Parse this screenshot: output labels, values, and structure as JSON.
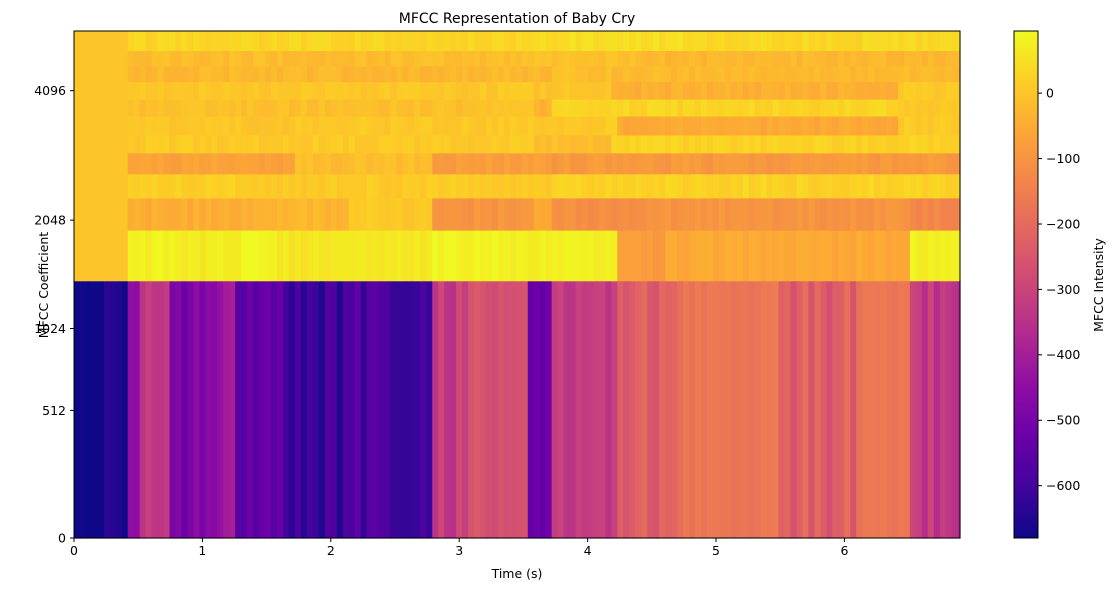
{
  "chart_data": {
    "type": "heatmap",
    "title": "MFCC Representation of Baby Cry",
    "xlabel": "Time (s)",
    "ylabel": "MFCC Coefficient",
    "xlim": [
      0,
      6.9
    ],
    "x_ticks": [
      0,
      1,
      2,
      3,
      4,
      5,
      6
    ],
    "y_axis_scale": "mel",
    "y_ticks": [
      0,
      512,
      1024,
      2048,
      4096
    ],
    "colormap": "plasma",
    "colorbar": {
      "label": "MFCC Intensity",
      "range": [
        -680,
        95
      ],
      "ticks": [
        0,
        -100,
        -200,
        -300,
        -400,
        -500,
        -600
      ]
    },
    "grid": false,
    "row_order": "bottom_to_top",
    "row_bounds": [
      0,
      5.03,
      6.02,
      6.65,
      7.12,
      7.53,
      7.88,
      8.25,
      8.58,
      8.92,
      9.23,
      9.53,
      9.91
    ],
    "frame_time_step": 0.0465,
    "rows": [
      {
        "breakpoints": [
          0,
          0.42,
          0.5,
          0.75,
          1.0,
          1.25,
          1.65,
          2.2,
          2.8,
          3.0,
          3.55,
          3.7,
          4.25,
          4.75,
          5.5,
          6.1,
          6.5,
          6.9
        ],
        "values": [
          -670,
          -440,
          -330,
          -480,
          -420,
          -520,
          -610,
          -585,
          -310,
          -270,
          -520,
          -310,
          -220,
          -170,
          -230,
          -170,
          -330
        ]
      },
      {
        "breakpoints": [
          0,
          0.42,
          0.8,
          1.0,
          1.3,
          1.6,
          2.8,
          3.5,
          4.25,
          4.6,
          6.5,
          6.9
        ],
        "values": [
          0,
          80,
          65,
          75,
          90,
          62,
          85,
          75,
          -85,
          -55,
          80
        ]
      },
      {
        "breakpoints": [
          0,
          0.42,
          1.4,
          2.15,
          2.8,
          3.6,
          3.7,
          4.5,
          6.5,
          6.9
        ],
        "values": [
          0,
          -45,
          -30,
          5,
          -100,
          -60,
          -110,
          -100,
          -130
        ]
      },
      {
        "breakpoints": [
          0,
          0.42,
          1.3,
          2.8,
          3.7,
          6.9
        ],
        "values": [
          0,
          20,
          10,
          15,
          25
        ]
      },
      {
        "breakpoints": [
          0,
          0.42,
          1.7,
          2.8,
          3.7,
          6.9
        ],
        "values": [
          0,
          -70,
          -15,
          -80,
          -90
        ]
      },
      {
        "breakpoints": [
          0,
          0.42,
          3.6,
          4.2,
          6.9
        ],
        "values": [
          0,
          10,
          -15,
          25
        ]
      },
      {
        "breakpoints": [
          0,
          0.42,
          3.5,
          4.25,
          6.4,
          6.9
        ],
        "values": [
          0,
          5,
          10,
          -55,
          10
        ]
      },
      {
        "breakpoints": [
          0,
          0.42,
          3.6,
          3.7,
          6.4,
          6.9
        ],
        "values": [
          0,
          -10,
          -40,
          30,
          10
        ]
      },
      {
        "breakpoints": [
          0,
          0.42,
          3.6,
          4.2,
          6.4,
          6.9
        ],
        "values": [
          0,
          5,
          0,
          -40,
          10
        ]
      },
      {
        "breakpoints": [
          0,
          0.42,
          3.7,
          4.2,
          6.9
        ],
        "values": [
          0,
          -25,
          -10,
          -20
        ]
      },
      {
        "breakpoints": [
          0,
          0.42,
          3.6,
          4.4,
          6.9
        ],
        "values": [
          0,
          -15,
          -5,
          -25
        ]
      },
      {
        "breakpoints": [
          0,
          0.42,
          3.6,
          4.8,
          6.9
        ],
        "values": [
          0,
          30,
          45,
          35
        ]
      }
    ]
  }
}
